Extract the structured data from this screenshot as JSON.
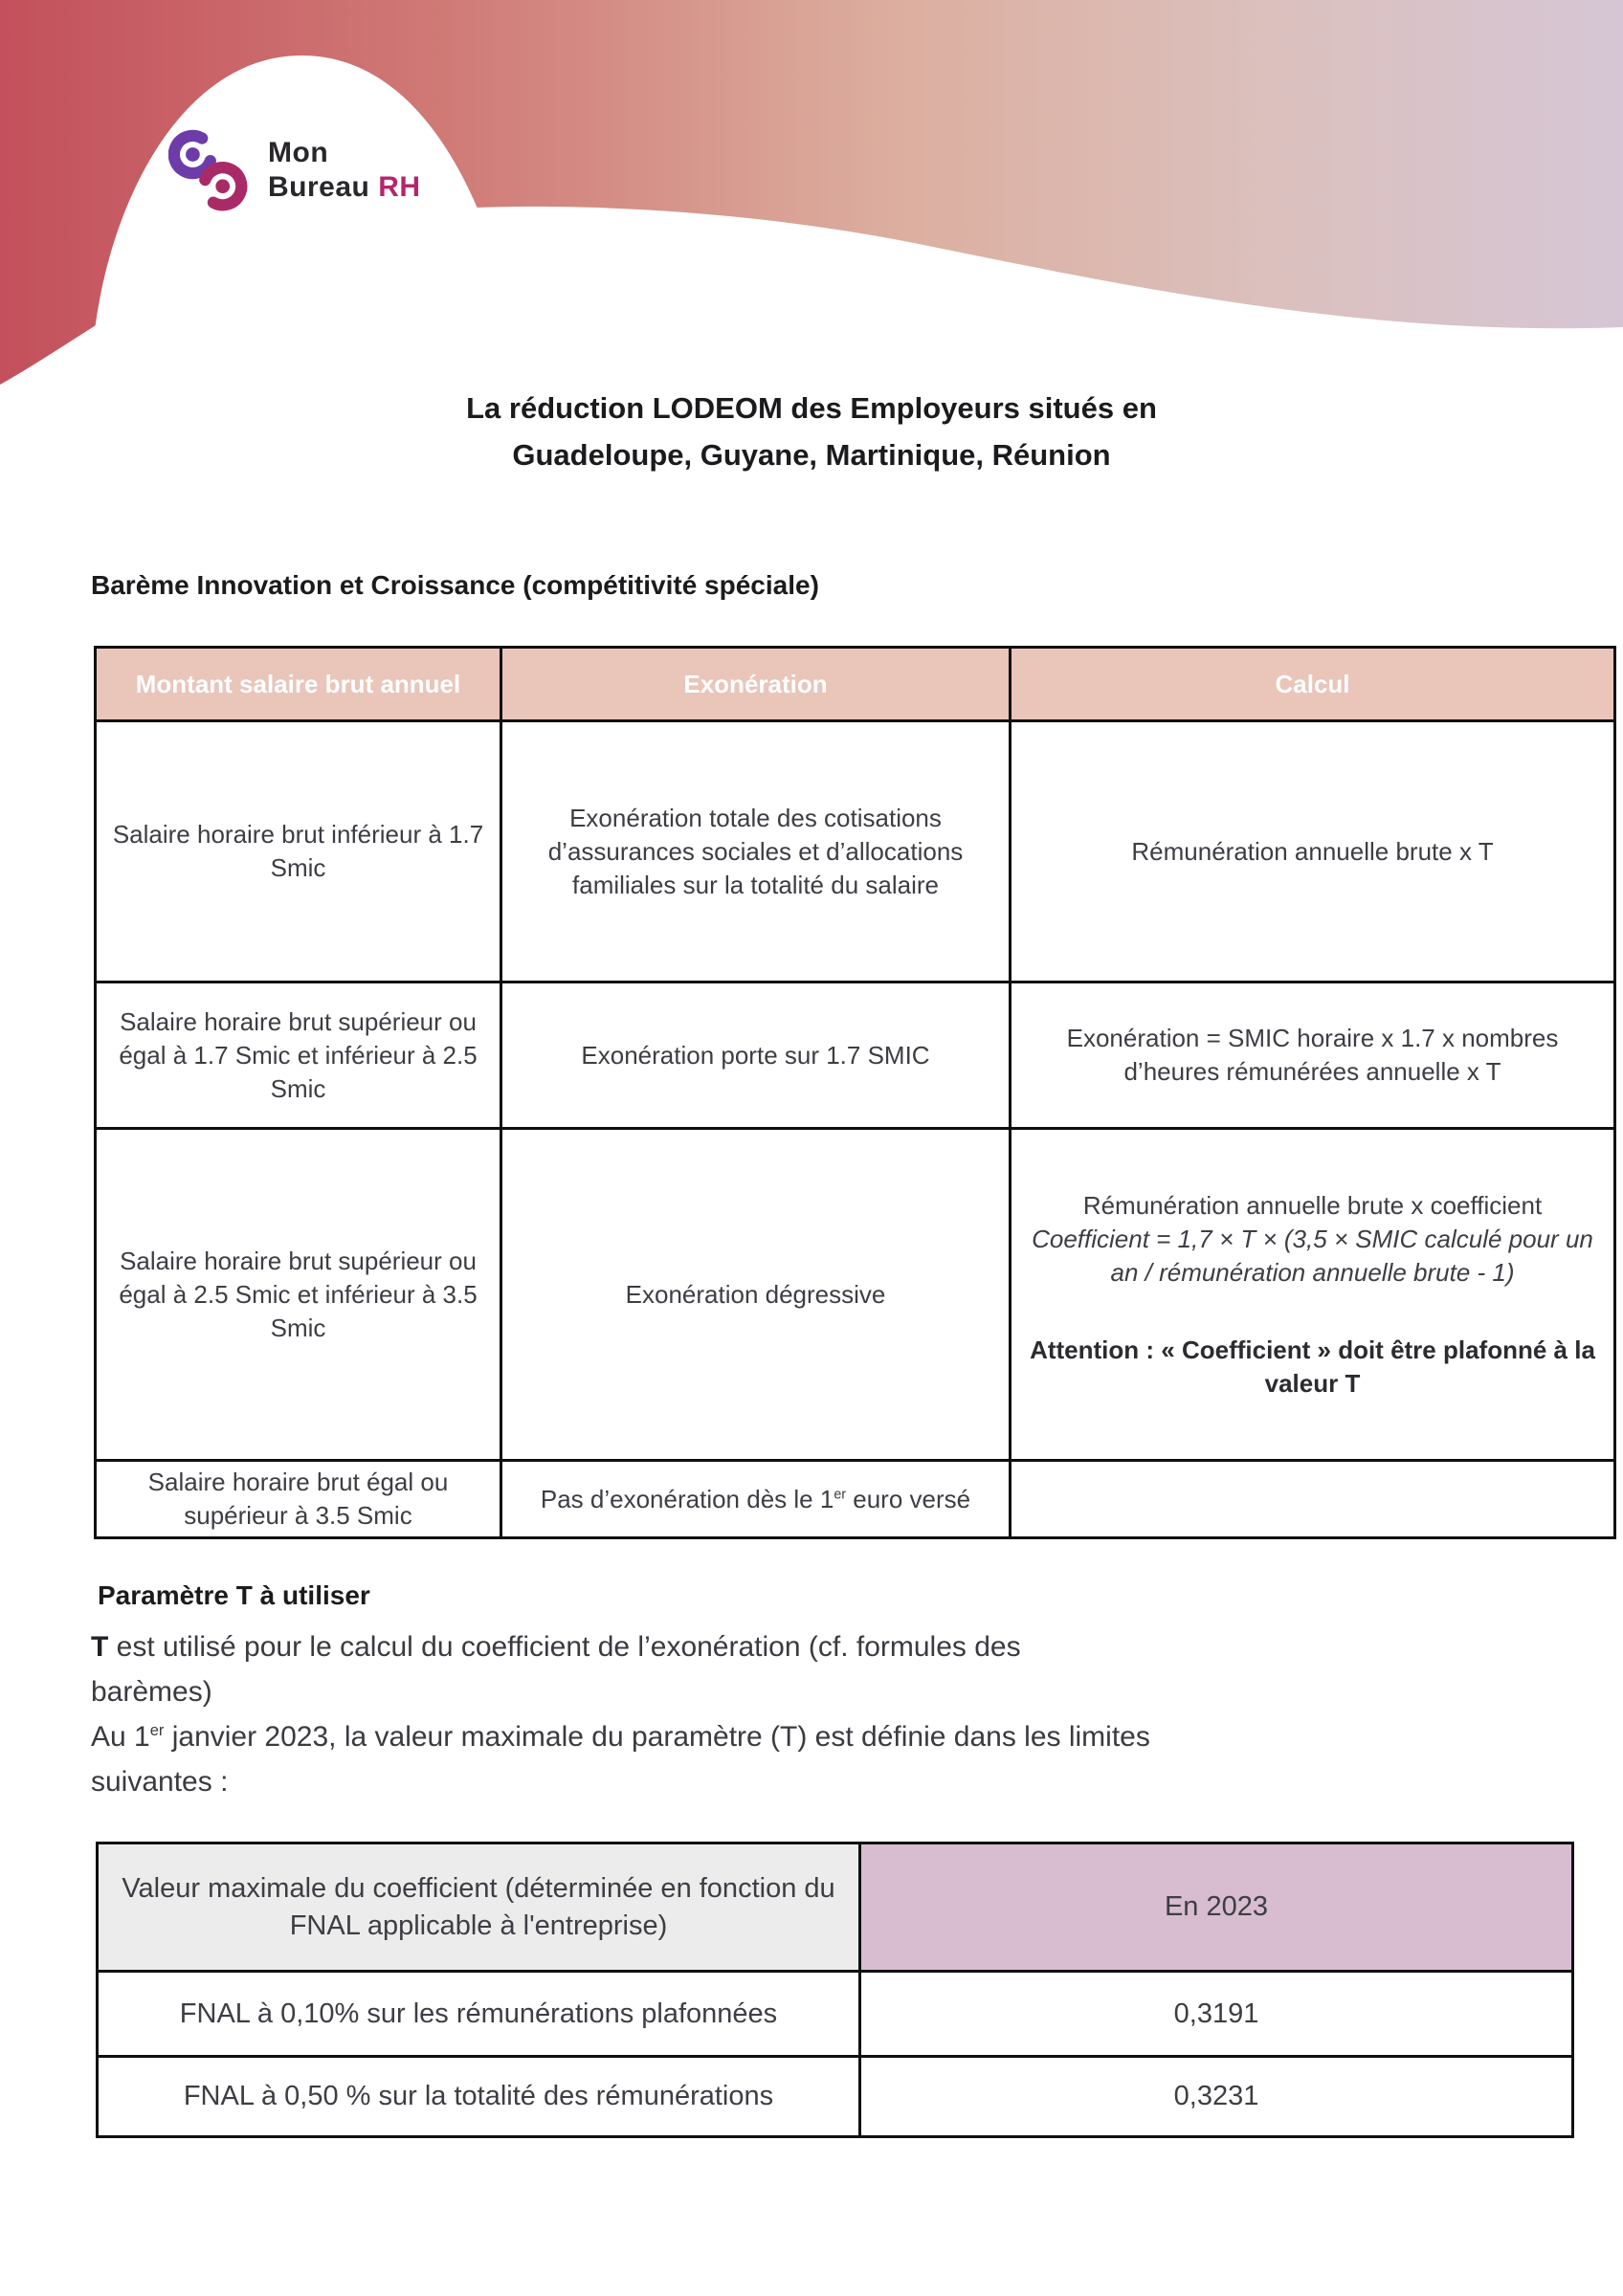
{
  "logo": {
    "line1": "Mon",
    "line2_main": "Bureau",
    "line2_accent": "RH"
  },
  "title": {
    "lines": [
      "La réduction LODEOM des Employeurs situés en",
      "Guadeloupe, Guyane, Martinique, Réunion"
    ]
  },
  "bareme": {
    "heading": "Barème Innovation et Croissance (compétitivité spéciale)",
    "table": {
      "headers": [
        "Montant salaire brut annuel",
        "Exonération",
        "Calcul"
      ],
      "rows": [
        {
          "cells": [
            [
              {
                "t": "Salaire horaire brut inférieur à 1.7 Smic"
              }
            ],
            [
              {
                "t": "Exonération totale des cotisations d’assurances sociales et d’allocations familiales sur la totalité du salaire"
              }
            ],
            [
              {
                "t": "Rémunération annuelle brute x T"
              }
            ]
          ]
        },
        {
          "cells": [
            [
              {
                "t": "Salaire horaire brut supérieur ou égal à 1.7 Smic et inférieur à 2.5 Smic"
              }
            ],
            [
              {
                "t": "Exonération porte sur 1.7 SMIC"
              }
            ],
            [
              {
                "t": "Exonération = SMIC horaire x 1.7 x nombres d’heures rémunérées annuelle x T"
              }
            ]
          ]
        },
        {
          "cells": [
            [
              {
                "t": "Salaire horaire brut supérieur ou égal à 2.5 Smic et inférieur à 3.5 Smic"
              }
            ],
            [
              {
                "t": "Exonération dégressive"
              }
            ],
            [
              {
                "t": "Rémunération annuelle brute x coefficient",
                "block": true
              },
              {
                "t": "Coefficient = 1,7 × T × (3,5 × SMIC calculé pour un an / rémunération annuelle brute - 1)",
                "style": "italic",
                "block": true
              },
              {
                "t": "Attention : « Coefficient » doit être plafonné à la valeur T",
                "style": "bold",
                "block": true,
                "gap": true
              }
            ]
          ]
        },
        {
          "cells": [
            [
              {
                "t": "Salaire horaire brut égal ou supérieur à 3.5 Smic"
              }
            ],
            [
              {
                "t": "Pas d’exonération dès le 1"
              },
              {
                "t": "er",
                "sup": true
              },
              {
                "t": " euro versé"
              }
            ],
            []
          ]
        }
      ]
    }
  },
  "parametre": {
    "heading": "Paramètre T à utiliser",
    "intro_lines": [
      [
        {
          "t": "T",
          "style": "bold"
        },
        {
          "t": " est utilisé pour le calcul du coefficient de l’exonération (cf. formules des"
        }
      ],
      [
        {
          "t": "barèmes)"
        }
      ],
      [
        {
          "t": "Au 1"
        },
        {
          "t": "er",
          "sup": true
        },
        {
          "t": " janvier 2023, la valeur maximale du paramètre (T) est définie dans les limites"
        }
      ],
      [
        {
          "t": "suivantes :"
        }
      ]
    ],
    "table": {
      "rows": [
        {
          "cells": [
            {
              "t": "Valeur maximale du coefficient (déterminée en fonction du FNAL applicable à l'entreprise)",
              "cls": "hdr-left"
            },
            {
              "t": "En 2023",
              "cls": "hdr-right"
            }
          ]
        },
        {
          "cells": [
            {
              "t": "FNAL à 0,10% sur les rémunérations plafonnées"
            },
            {
              "t": "0,3191"
            }
          ]
        },
        {
          "cells": [
            {
              "t": "FNAL à 0,50 % sur la totalité des rémunérations"
            },
            {
              "t": "0,3231"
            }
          ]
        }
      ]
    }
  },
  "colors": {
    "band_gradient": [
      "#c3505c",
      "#d07b77",
      "#dcae9f",
      "#dbc0bd",
      "#d6c6d5"
    ],
    "logo_purple": "#6d3ca9",
    "logo_magenta": "#aa2a67",
    "logo_rh": "#b5256d",
    "t1_header_bg": "#e9c5ba",
    "t1_header_text": "#ffffff",
    "t2_header_left_bg": "#ececec",
    "t2_header_right_bg": "#d8bccf",
    "border": "#101010",
    "text_dark": "#1b1b1e",
    "text_body": "#3d3e44"
  }
}
